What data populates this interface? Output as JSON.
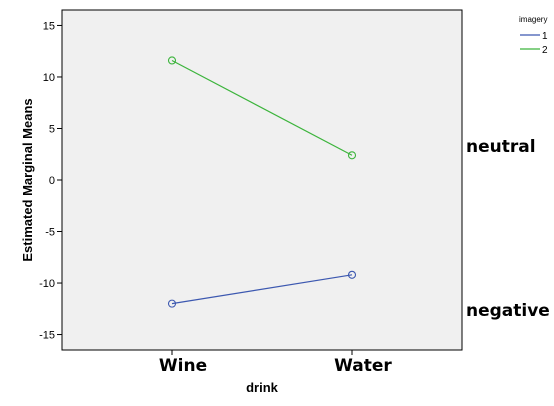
{
  "chart_data": {
    "type": "line",
    "title": "",
    "xlabel": "drink",
    "ylabel": "Estimated Marginal Means",
    "categories": [
      "Wine",
      "Water"
    ],
    "ylim": [
      -16.5,
      16.5
    ],
    "yticks": [
      -15,
      -10,
      -5,
      0,
      5,
      10,
      15
    ],
    "grid": false,
    "legend": {
      "title": "imagery",
      "placement": "top-right outside"
    },
    "series": [
      {
        "name": "1",
        "color": "#3c58b0",
        "values": [
          -12.0,
          -9.2
        ]
      },
      {
        "name": "2",
        "color": "#3cb43c",
        "values": [
          11.6,
          2.4
        ]
      }
    ],
    "annotations": [
      {
        "text": "neutral",
        "series": "2"
      },
      {
        "text": "negative",
        "series": "1"
      }
    ],
    "plot_background": "#f0f0f0",
    "marker": "circle-open"
  }
}
